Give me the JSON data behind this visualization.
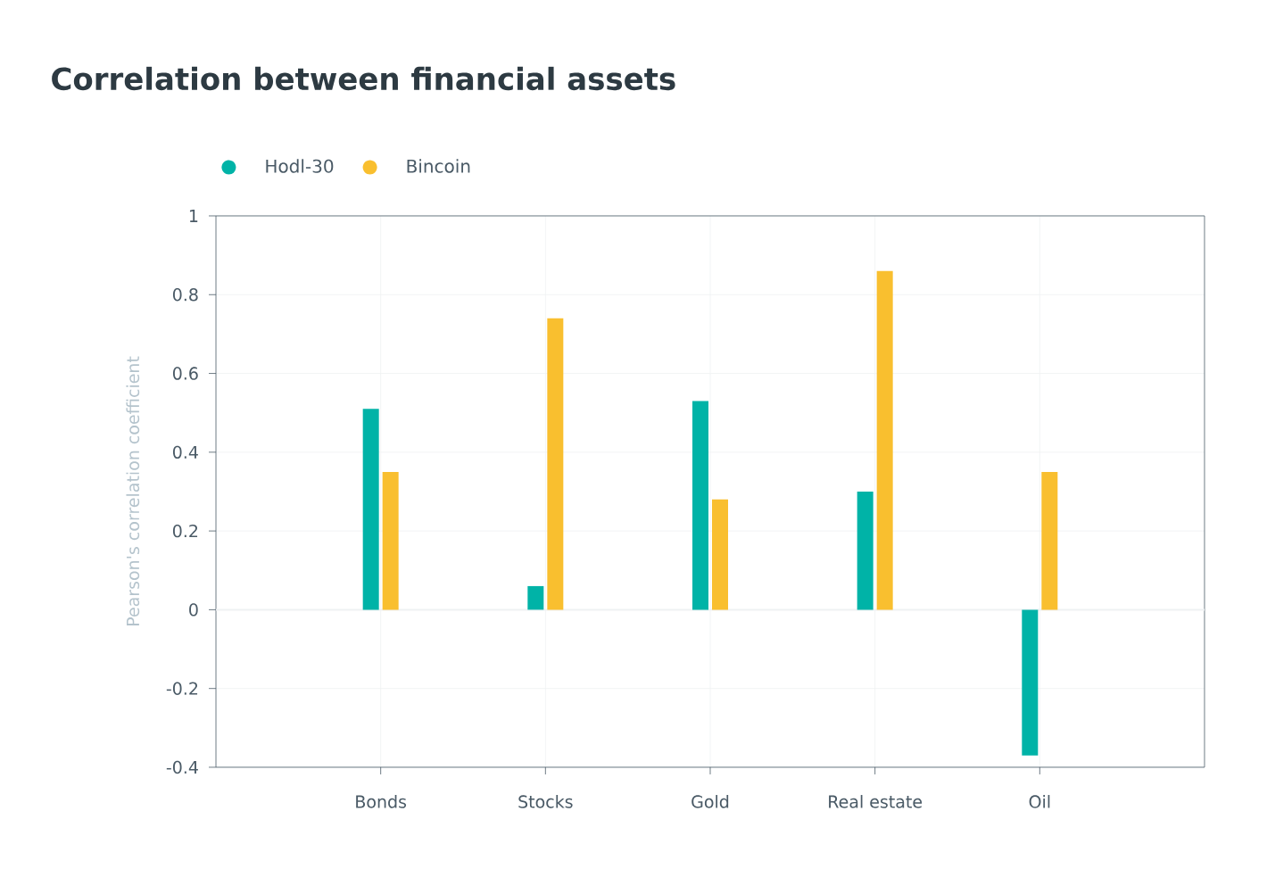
{
  "chart_data": {
    "type": "bar",
    "title": "Correlation between financial assets",
    "ylabel": "Pearson's correlation coefficient",
    "categories": [
      "Bonds",
      "Stocks",
      "Gold",
      "Real estate",
      "Oil"
    ],
    "series": [
      {
        "name": "Hodl-30",
        "color": "#00b3a7",
        "values": [
          0.51,
          0.06,
          0.53,
          0.3,
          -0.37
        ]
      },
      {
        "name": "Bincoin",
        "color": "#f9bf2f",
        "values": [
          0.35,
          0.74,
          0.28,
          0.86,
          0.35
        ]
      }
    ],
    "ylim": [
      -0.4,
      1
    ],
    "yticks": [
      -0.4,
      -0.2,
      0,
      0.2,
      0.4,
      0.6,
      0.8,
      1
    ],
    "grid": true,
    "legend": "top left"
  }
}
